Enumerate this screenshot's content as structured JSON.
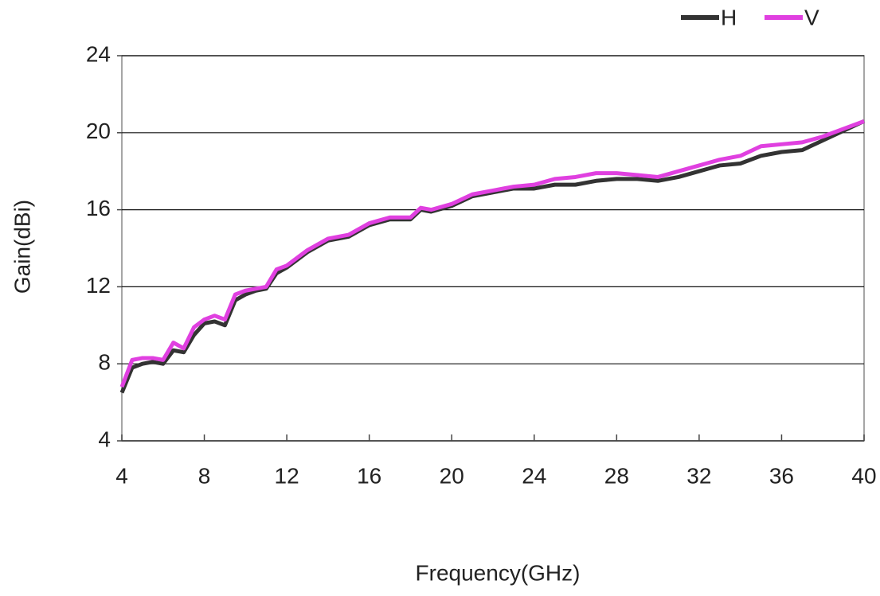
{
  "chart_data": {
    "type": "line",
    "x_label": "Frequency(GHz)",
    "y_label": "Gain(dBi)",
    "x": [
      4,
      4.5,
      5,
      5.5,
      6,
      6.5,
      7,
      7.5,
      8,
      8.5,
      9,
      9.5,
      10,
      10.5,
      11,
      11.5,
      12,
      13,
      14,
      15,
      16,
      17,
      18,
      18.5,
      19,
      20,
      21,
      22,
      23,
      24,
      25,
      26,
      27,
      28,
      29,
      30,
      31,
      32,
      33,
      34,
      35,
      36,
      37,
      38,
      39,
      40
    ],
    "series": [
      {
        "name": "H",
        "color": "#333333",
        "values": [
          6.5,
          7.8,
          8.0,
          8.1,
          8.0,
          8.7,
          8.6,
          9.5,
          10.1,
          10.2,
          10.0,
          11.3,
          11.6,
          11.8,
          11.9,
          12.7,
          13.0,
          13.8,
          14.4,
          14.6,
          15.2,
          15.5,
          15.5,
          16.0,
          15.9,
          16.2,
          16.7,
          16.9,
          17.1,
          17.1,
          17.3,
          17.3,
          17.5,
          17.6,
          17.6,
          17.5,
          17.7,
          18.0,
          18.3,
          18.4,
          18.8,
          19.0,
          19.1,
          19.6,
          20.1,
          20.6
        ]
      },
      {
        "name": "V",
        "color": "#e040e0",
        "values": [
          6.8,
          8.2,
          8.3,
          8.3,
          8.2,
          9.1,
          8.8,
          9.9,
          10.3,
          10.5,
          10.3,
          11.6,
          11.8,
          11.9,
          12.0,
          12.9,
          13.1,
          13.9,
          14.5,
          14.7,
          15.3,
          15.6,
          15.6,
          16.1,
          16.0,
          16.3,
          16.8,
          17.0,
          17.2,
          17.3,
          17.6,
          17.7,
          17.9,
          17.9,
          17.8,
          17.7,
          18.0,
          18.3,
          18.6,
          18.8,
          19.3,
          19.4,
          19.5,
          19.8,
          20.2,
          20.6
        ]
      }
    ],
    "xlim": [
      4,
      40
    ],
    "xticks": [
      4,
      8,
      12,
      16,
      20,
      24,
      28,
      32,
      36,
      40
    ],
    "ylim": [
      4,
      24
    ],
    "yticks": [
      4,
      8,
      12,
      16,
      20,
      24
    ],
    "grid": true,
    "legend": "upper right"
  }
}
